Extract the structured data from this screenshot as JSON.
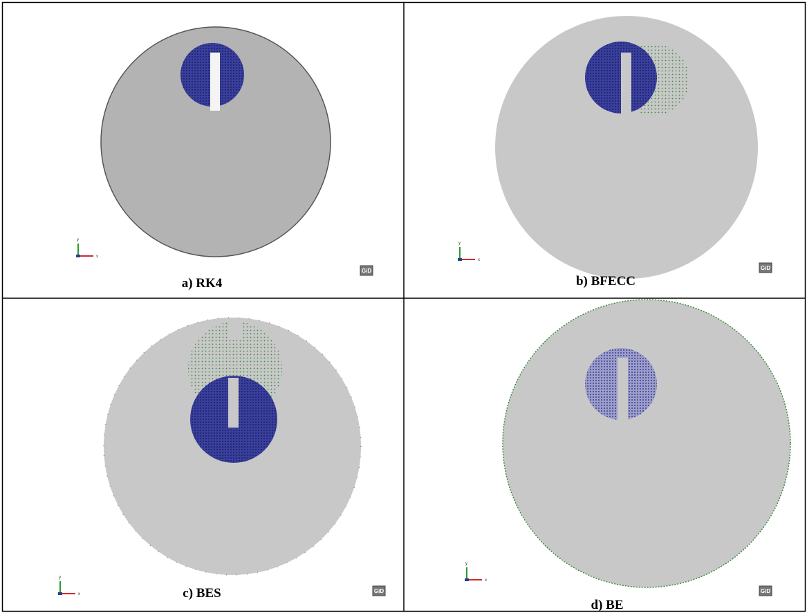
{
  "panels": [
    {
      "caption": "a) RK4",
      "axis_x": "x",
      "axis_y": "y",
      "logo": "GiD"
    },
    {
      "caption": "b) BFECC",
      "axis_x": "x",
      "axis_y": "y",
      "logo": "GiD"
    },
    {
      "caption": "c) BES",
      "axis_x": "x",
      "axis_y": "y",
      "logo": "GiD"
    },
    {
      "caption": "d) BE",
      "axis_x": "x",
      "axis_y": "y",
      "logo": "GiD"
    }
  ]
}
